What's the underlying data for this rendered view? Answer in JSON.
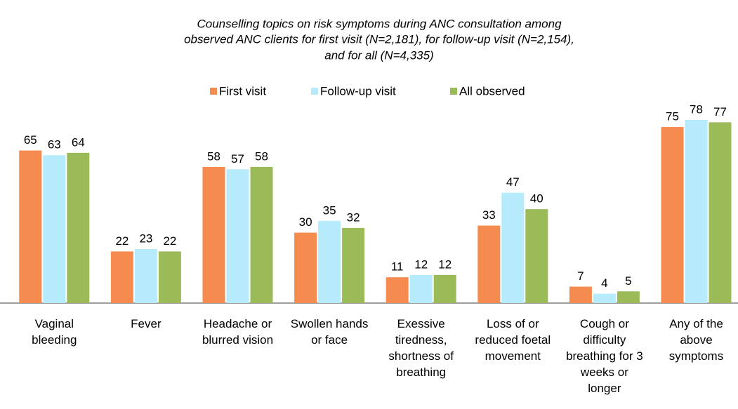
{
  "chart_data": {
    "type": "bar",
    "title": [
      "Counselling topics on risk symptoms during ANC consultation among",
      "observed ANC clients for first visit (N=2,181), for follow-up visit (N=2,154),",
      "and for all (N=4,335)"
    ],
    "categories": [
      "Vaginal bleeding",
      "Fever",
      "Headache or blurred vision",
      "Swollen hands or face",
      "Exessive tiredness, shortness of breathing",
      "Loss of or reduced foetal movement",
      "Cough or difficulty breathing for 3 weeks or longer",
      "Any of the above symptoms"
    ],
    "series": [
      {
        "name": "First visit",
        "color": "#f58b4f",
        "values": [
          65,
          22,
          58,
          30,
          11,
          33,
          7,
          75
        ]
      },
      {
        "name": "Follow-up visit",
        "color": "#b5ebfb",
        "values": [
          63,
          23,
          57,
          35,
          12,
          47,
          4,
          78
        ]
      },
      {
        "name": "All observed",
        "color": "#9bbb59",
        "values": [
          64,
          22,
          58,
          32,
          12,
          40,
          5,
          77
        ]
      }
    ],
    "ylim": [
      0,
      80
    ]
  }
}
